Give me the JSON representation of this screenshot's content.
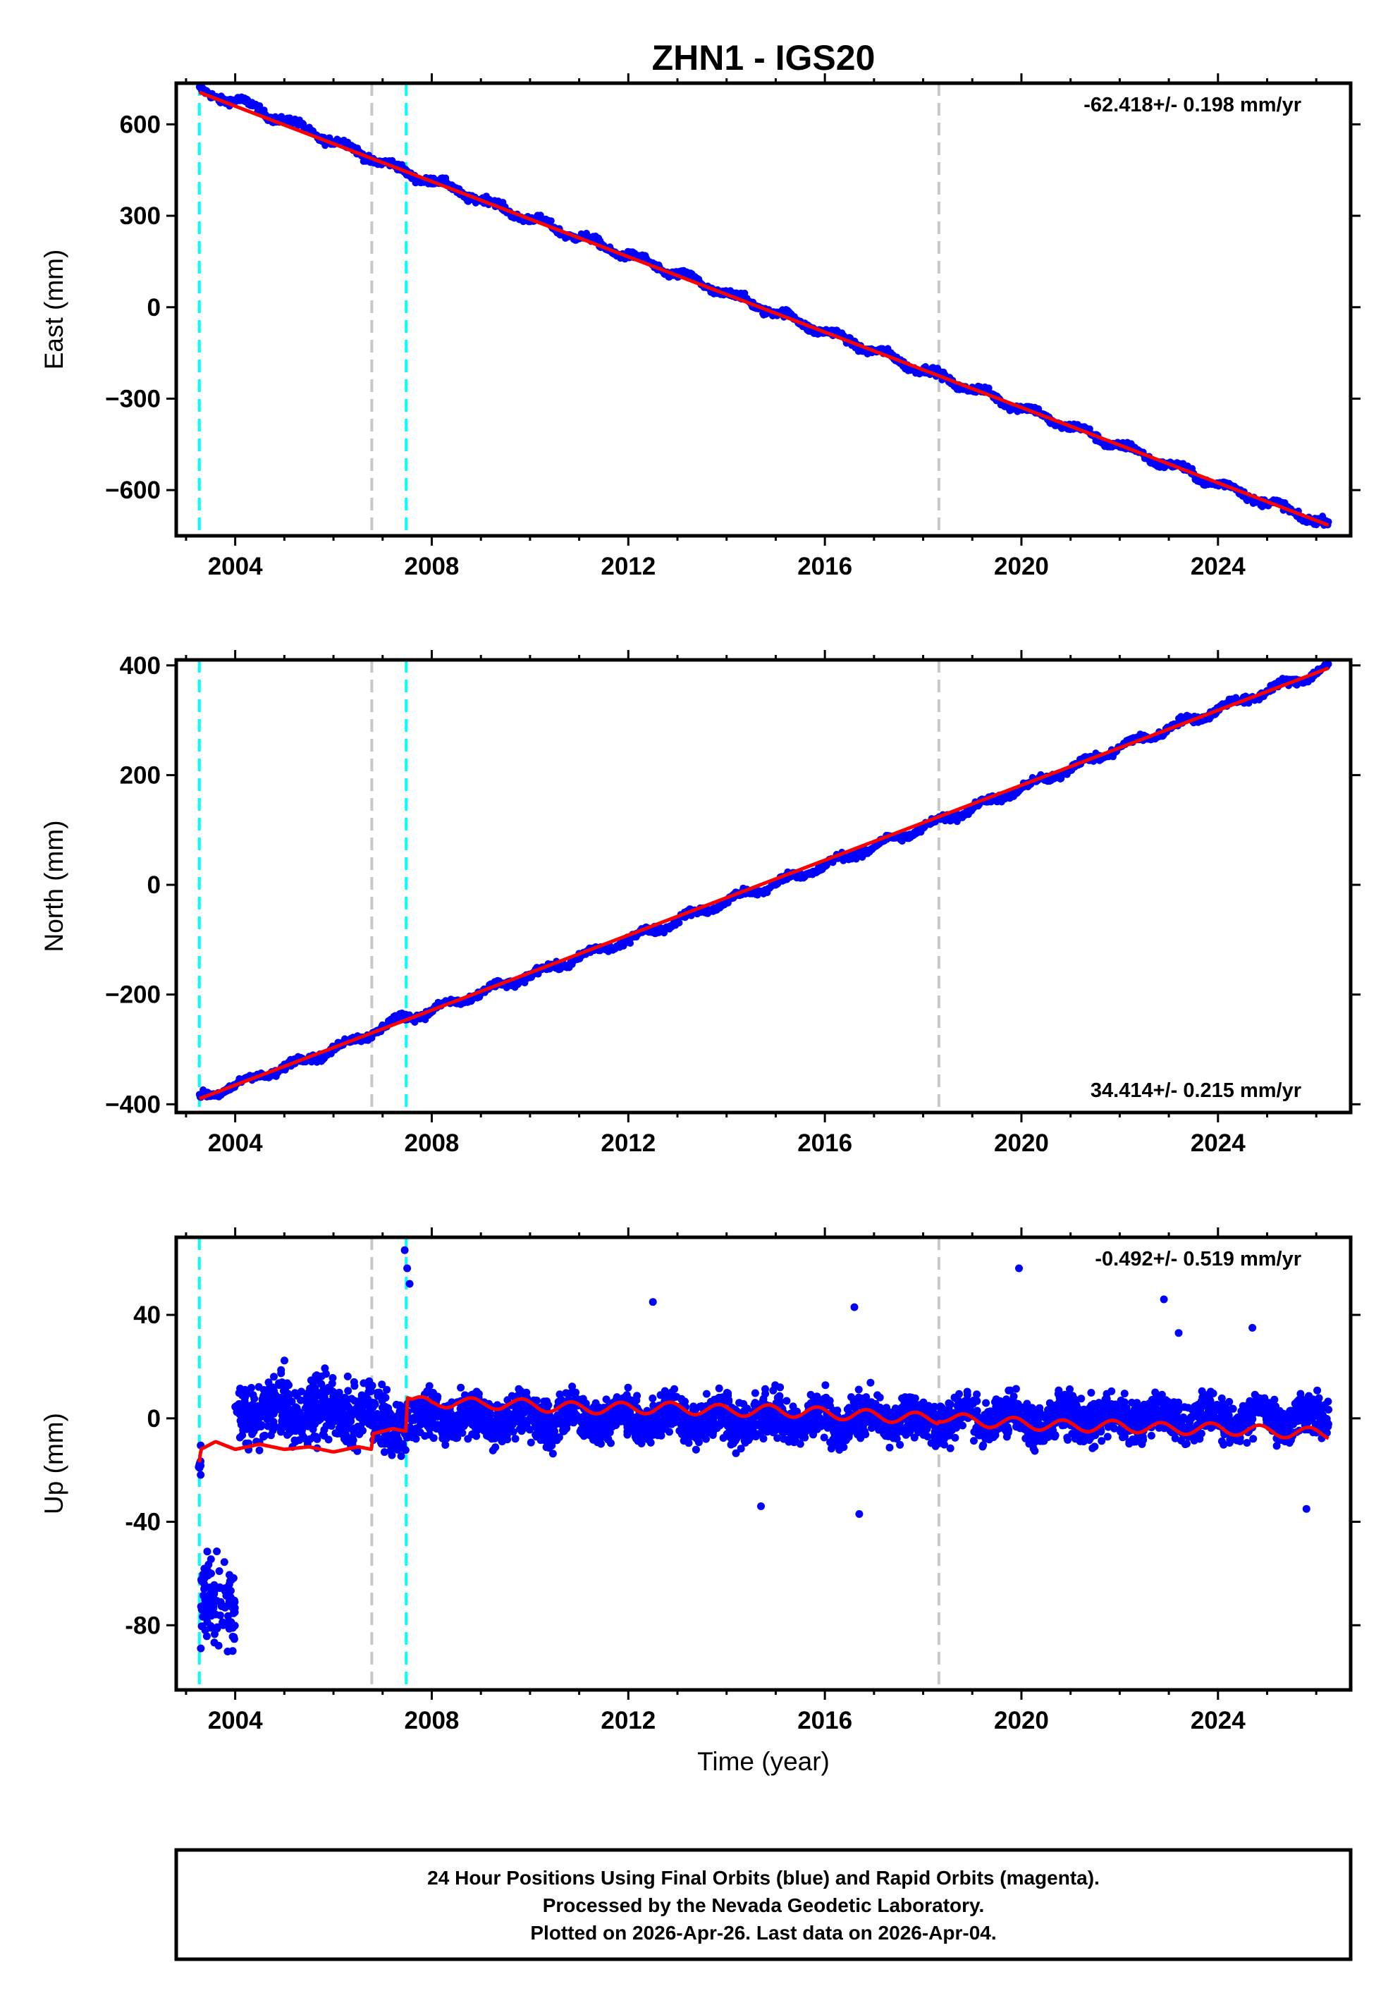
{
  "title": "ZHN1 - IGS20",
  "xlabel": "Time (year)",
  "footer": {
    "line1": "24 Hour Positions Using Final Orbits (blue) and Rapid Orbits (magenta).",
    "line2": "Processed by the Nevada Geodetic Laboratory.",
    "line3": "Plotted on 2026-Apr-26. Last data on 2026-Apr-04."
  },
  "colors": {
    "data": "#0000ff",
    "model": "#ff0000",
    "equipment_change": "#00ffff",
    "other_event": "#c8c8c8",
    "frame": "#000000"
  },
  "chart_data": [
    {
      "type": "scatter",
      "component": "East",
      "ylabel": "East (mm)",
      "rate_text": "-62.418+/- 0.198 mm/yr",
      "rate_position": "top-right",
      "xlim": [
        2002.8,
        2026.7
      ],
      "ylim": [
        -750,
        735
      ],
      "xticks": [
        2004,
        2008,
        2012,
        2016,
        2020,
        2024
      ],
      "yticks": [
        -600,
        -300,
        0,
        300,
        600
      ],
      "ytick_labels": [
        "−600",
        "−300",
        "0",
        "300",
        "600"
      ],
      "grid": false,
      "series": [
        {
          "kind": "daily-positions",
          "color": "#0000ff",
          "x": [
            2003.27,
            2004.0,
            2006.0,
            2007.5,
            2008.0,
            2010.0,
            2012.0,
            2014.0,
            2016.0,
            2018.3,
            2020.0,
            2022.0,
            2024.0,
            2026.25
          ],
          "y": [
            705,
            680,
            545,
            440,
            415,
            290,
            170,
            45,
            -80,
            -225,
            -330,
            -455,
            -580,
            -715
          ]
        },
        {
          "kind": "model-fit",
          "color": "#ff0000",
          "x": [
            2003.27,
            2026.25
          ],
          "y": [
            705,
            -715
          ]
        }
      ]
    },
    {
      "type": "scatter",
      "component": "North",
      "ylabel": "North (mm)",
      "rate_text": "34.414+/- 0.215 mm/yr",
      "rate_position": "bottom-right",
      "xlim": [
        2002.8,
        2026.7
      ],
      "ylim": [
        -415,
        410
      ],
      "xticks": [
        2004,
        2008,
        2012,
        2016,
        2020,
        2024
      ],
      "yticks": [
        -400,
        -200,
        0,
        200,
        400
      ],
      "ytick_labels": [
        "−400",
        "−200",
        "0",
        "200",
        "400"
      ],
      "grid": false,
      "series": [
        {
          "kind": "daily-positions",
          "color": "#0000ff",
          "x": [
            2003.27,
            2004.0,
            2006.0,
            2007.5,
            2008.0,
            2010.0,
            2012.0,
            2014.0,
            2016.0,
            2018.3,
            2020.0,
            2022.0,
            2024.0,
            2026.25
          ],
          "y": [
            -390,
            -365,
            -300,
            -240,
            -230,
            -165,
            -100,
            -30,
            35,
            115,
            175,
            250,
            320,
            395
          ]
        },
        {
          "kind": "model-fit",
          "color": "#ff0000",
          "x": [
            2003.27,
            2026.25
          ],
          "y": [
            -390,
            395
          ]
        }
      ]
    },
    {
      "type": "scatter",
      "component": "Up",
      "ylabel": "Up (mm)",
      "rate_text": "-0.492+/- 0.519 mm/yr",
      "rate_position": "top-right",
      "xlim": [
        2002.8,
        2026.7
      ],
      "ylim": [
        -105,
        70
      ],
      "xticks": [
        2004,
        2008,
        2012,
        2016,
        2020,
        2024
      ],
      "yticks": [
        -80,
        -40,
        0,
        40
      ],
      "ytick_labels": [
        "-80",
        "-40",
        "0",
        "40"
      ],
      "grid": false,
      "series": [
        {
          "kind": "daily-positions",
          "color": "#0000ff",
          "segments": [
            {
              "x_range": [
                2003.25,
                2003.3
              ],
              "center": -15,
              "spread": 10
            },
            {
              "x_range": [
                2003.3,
                2004.0
              ],
              "center": -72,
              "spread": 14
            },
            {
              "x_range": [
                2004.0,
                2006.8
              ],
              "center": 3,
              "spread": 10
            },
            {
              "x_range": [
                2006.8,
                2007.5
              ],
              "center": -2,
              "spread": 9
            },
            {
              "x_range": [
                2007.5,
                2026.25
              ],
              "center": 0,
              "spread": 7
            }
          ],
          "outliers": {
            "x": [
              2007.45,
              2007.5,
              2007.55,
              2019.95,
              2012.5,
              2016.6,
              2022.9,
              2023.2,
              2014.7,
              2016.7,
              2025.8,
              2024.7
            ],
            "y": [
              65,
              58,
              52,
              58,
              45,
              43,
              46,
              33,
              -34,
              -37,
              -35,
              35
            ]
          }
        },
        {
          "kind": "model-fit",
          "color": "#ff0000",
          "x": [
            2003.27,
            2003.3,
            2003.6,
            2004.0,
            2004.5,
            2005.0,
            2005.5,
            2006.0,
            2006.5,
            2006.78,
            2006.8,
            2007.2,
            2007.48,
            2007.5,
            2008.0,
            2008.5,
            2009.0,
            2009.5,
            2010.0,
            2011.0,
            2012.0,
            2013.0,
            2014.0,
            2015.0,
            2016.0,
            2017.0,
            2018.0,
            2018.3,
            2018.32,
            2019.0,
            2020.0,
            2021.0,
            2022.0,
            2023.0,
            2024.0,
            2025.0,
            2026.25
          ],
          "y": [
            -17,
            -12,
            -9,
            -12,
            -10,
            -12,
            -11,
            -13,
            -11,
            -12,
            -6,
            -4,
            -5,
            8,
            5,
            7,
            5,
            6,
            5,
            4,
            4,
            4,
            3,
            3,
            2,
            1,
            0,
            0,
            1,
            -1,
            -2,
            -3,
            -3,
            -4,
            -4,
            -5,
            -6
          ]
        }
      ]
    }
  ],
  "event_lines": {
    "equipment_change_years": [
      2003.27,
      2007.48
    ],
    "other_event_years": [
      2006.78,
      2018.32
    ]
  }
}
